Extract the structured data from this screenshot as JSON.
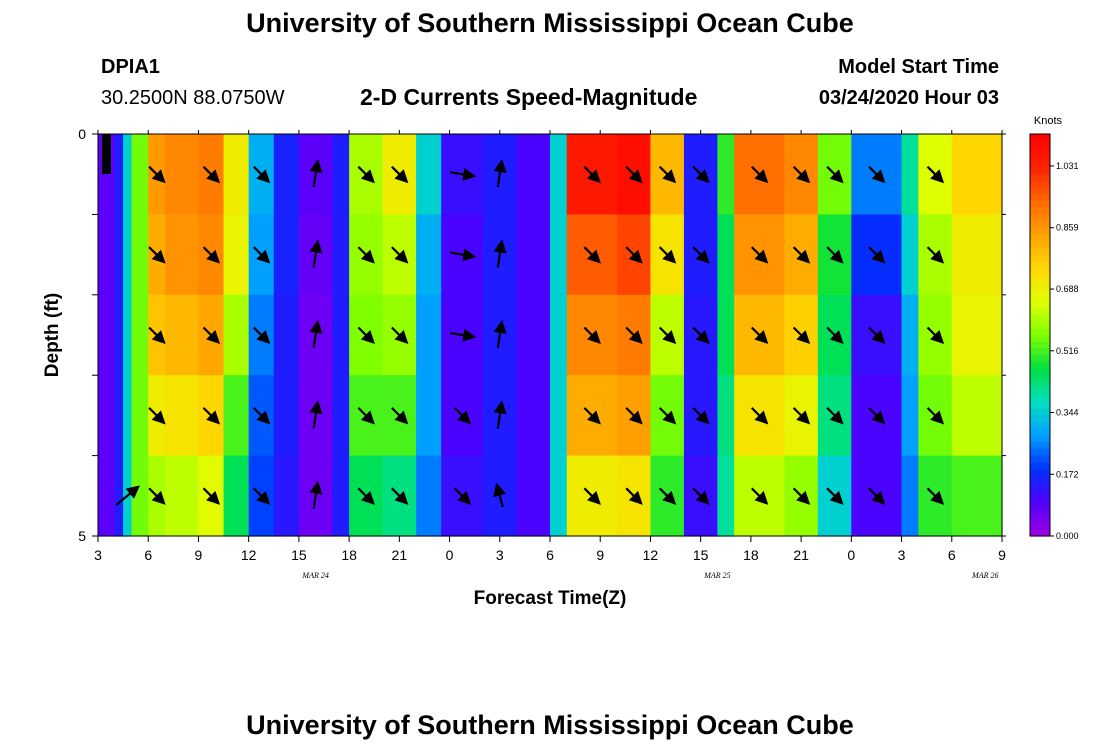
{
  "header": {
    "title": "University of Southern Mississippi Ocean Cube",
    "station_id": "DPIA1",
    "station_coords": "30.2500N 88.0750W",
    "chart_subtitle": "2-D Currents Speed-Magnitude",
    "model_label": "Model Start Time",
    "model_time": "03/24/2020 Hour 03"
  },
  "footer": {
    "title": "University of Southern Mississippi Ocean Cube"
  },
  "colors": {
    "scale": [
      "#a000e0",
      "#5000ff",
      "#0030ff",
      "#00a0ff",
      "#00e0c0",
      "#00e040",
      "#80ff00",
      "#e0ff00",
      "#ffd800",
      "#ffa000",
      "#ff6800",
      "#ff2000",
      "#ff0000"
    ]
  },
  "chart_data": {
    "type": "heatmap",
    "title": "2-D Currents Speed-Magnitude",
    "xlabel": "Forecast Time(Z)",
    "ylabel": "Depth (ft)",
    "x_ticks": [
      "3",
      "6",
      "9",
      "12",
      "15",
      "18",
      "21",
      "0",
      "3",
      "6",
      "9",
      "12",
      "15",
      "18",
      "21",
      "0",
      "3",
      "6",
      "9"
    ],
    "day_labels": [
      {
        "text": "MAR 24",
        "hour": 13
      },
      {
        "text": "MAR 25",
        "hour": 37
      },
      {
        "text": "MAR 26",
        "hour": 53
      }
    ],
    "y_ticks": [
      "0",
      "5"
    ],
    "ylim": [
      0,
      5
    ],
    "x_range_hours": [
      0,
      54
    ],
    "colorbar": {
      "title": "Knots",
      "ticks": [
        "1.031",
        "0.859",
        "0.688",
        "0.516",
        "0.344",
        "0.172",
        "0.000"
      ],
      "range": [
        0.0,
        1.12
      ]
    },
    "depth_bands": 5,
    "columns": [
      {
        "hour": 0,
        "speeds": [
          0.08,
          0.08,
          0.08,
          0.08,
          0.08
        ],
        "dir": [
          null,
          null,
          null,
          null,
          null
        ]
      },
      {
        "hour": 1,
        "speeds": [
          0.15,
          0.15,
          0.15,
          0.15,
          0.15
        ],
        "dir": [
          null,
          null,
          null,
          null,
          null
        ]
      },
      {
        "hour": 1.5,
        "speeds": [
          0.35,
          0.35,
          0.35,
          0.35,
          0.35
        ],
        "dir": [
          null,
          null,
          null,
          null,
          "ne"
        ]
      },
      {
        "hour": 2,
        "speeds": [
          0.55,
          0.55,
          0.55,
          0.55,
          0.55
        ],
        "dir": [
          null,
          null,
          null,
          null,
          null
        ]
      },
      {
        "hour": 3,
        "speeds": [
          0.85,
          0.82,
          0.78,
          0.7,
          0.6
        ],
        "dir": [
          "se",
          "se",
          "se",
          "se",
          "se"
        ]
      },
      {
        "hour": 4,
        "speeds": [
          0.88,
          0.86,
          0.8,
          0.72,
          0.62
        ],
        "dir": [
          null,
          null,
          null,
          null,
          null
        ]
      },
      {
        "hour": 6,
        "speeds": [
          0.9,
          0.88,
          0.83,
          0.75,
          0.66
        ],
        "dir": [
          "se",
          "se",
          "se",
          "se",
          "se"
        ]
      },
      {
        "hour": 7.5,
        "speeds": [
          0.7,
          0.68,
          0.6,
          0.52,
          0.45
        ],
        "dir": [
          null,
          null,
          null,
          null,
          null
        ]
      },
      {
        "hour": 9,
        "speeds": [
          0.3,
          0.28,
          0.25,
          0.22,
          0.2
        ],
        "dir": [
          "se",
          "se",
          "se",
          "se",
          "se"
        ]
      },
      {
        "hour": 10.5,
        "speeds": [
          0.16,
          0.16,
          0.15,
          0.15,
          0.14
        ],
        "dir": [
          null,
          null,
          null,
          null,
          null
        ]
      },
      {
        "hour": 12,
        "speeds": [
          0.08,
          0.07,
          0.06,
          0.06,
          0.06
        ],
        "dir": [
          "n",
          "n",
          "n",
          "n",
          "n"
        ]
      },
      {
        "hour": 14,
        "speeds": [
          0.15,
          0.15,
          0.15,
          0.15,
          0.15
        ],
        "dir": [
          null,
          null,
          null,
          null,
          null
        ]
      },
      {
        "hour": 15,
        "speeds": [
          0.6,
          0.58,
          0.56,
          0.52,
          0.45
        ],
        "dir": [
          "se",
          "se",
          "se",
          "se",
          "se"
        ]
      },
      {
        "hour": 17,
        "speeds": [
          0.7,
          0.62,
          0.58,
          0.52,
          0.42
        ],
        "dir": [
          "se",
          "se",
          "se",
          "se",
          "se"
        ]
      },
      {
        "hour": 19,
        "speeds": [
          0.35,
          0.3,
          0.28,
          0.28,
          0.25
        ],
        "dir": [
          null,
          null,
          null,
          null,
          null
        ]
      },
      {
        "hour": 20.5,
        "speeds": [
          0.12,
          0.1,
          0.1,
          0.1,
          0.12
        ],
        "dir": [
          "e",
          "e",
          "e",
          "se",
          "se"
        ]
      },
      {
        "hour": 23,
        "speeds": [
          0.15,
          0.15,
          0.15,
          0.15,
          0.15
        ],
        "dir": [
          "n",
          "n",
          "n",
          "n",
          "nw"
        ]
      },
      {
        "hour": 25,
        "speeds": [
          0.1,
          0.1,
          0.1,
          0.1,
          0.1
        ],
        "dir": [
          null,
          null,
          null,
          null,
          null
        ]
      },
      {
        "hour": 27,
        "speeds": [
          0.35,
          0.35,
          0.35,
          0.35,
          0.35
        ],
        "dir": [
          null,
          null,
          null,
          null,
          null
        ]
      },
      {
        "hour": 28,
        "speeds": [
          1.05,
          0.95,
          0.88,
          0.82,
          0.7
        ],
        "dir": [
          "se",
          "se",
          "se",
          "se",
          "se"
        ]
      },
      {
        "hour": 31,
        "speeds": [
          1.08,
          0.98,
          0.9,
          0.84,
          0.72
        ],
        "dir": [
          "se",
          "se",
          "se",
          "se",
          "se"
        ]
      },
      {
        "hour": 33,
        "speeds": [
          0.8,
          0.72,
          0.62,
          0.55,
          0.5
        ],
        "dir": [
          "se",
          "se",
          "se",
          "se",
          "se"
        ]
      },
      {
        "hour": 35,
        "speeds": [
          0.15,
          0.15,
          0.14,
          0.14,
          0.12
        ],
        "dir": [
          "se",
          "se",
          "se",
          "se",
          "se"
        ]
      },
      {
        "hour": 37,
        "speeds": [
          0.5,
          0.45,
          0.45,
          0.42,
          0.4
        ],
        "dir": [
          null,
          null,
          null,
          null,
          null
        ]
      },
      {
        "hour": 38,
        "speeds": [
          0.92,
          0.86,
          0.8,
          0.72,
          0.62
        ],
        "dir": [
          "se",
          "se",
          "se",
          "se",
          "se"
        ]
      },
      {
        "hour": 41,
        "speeds": [
          0.88,
          0.82,
          0.76,
          0.68,
          0.58
        ],
        "dir": [
          "se",
          "se",
          "se",
          "se",
          "se"
        ]
      },
      {
        "hour": 43,
        "speeds": [
          0.55,
          0.48,
          0.45,
          0.42,
          0.35
        ],
        "dir": [
          "se",
          "se",
          "se",
          "se",
          "se"
        ]
      },
      {
        "hour": 45,
        "speeds": [
          0.25,
          0.18,
          0.12,
          0.1,
          0.1
        ],
        "dir": [
          "se",
          "se",
          "se",
          "se",
          "se"
        ]
      },
      {
        "hour": 48,
        "speeds": [
          0.4,
          0.35,
          0.3,
          0.28,
          0.25
        ],
        "dir": [
          null,
          null,
          null,
          null,
          null
        ]
      },
      {
        "hour": 49,
        "speeds": [
          0.65,
          0.6,
          0.58,
          0.55,
          0.5
        ],
        "dir": [
          "se",
          "se",
          "se",
          "se",
          "se"
        ]
      },
      {
        "hour": 51,
        "speeds": [
          0.75,
          0.7,
          0.68,
          0.62,
          0.52
        ],
        "dir": [
          null,
          null,
          null,
          null,
          null
        ]
      }
    ]
  }
}
